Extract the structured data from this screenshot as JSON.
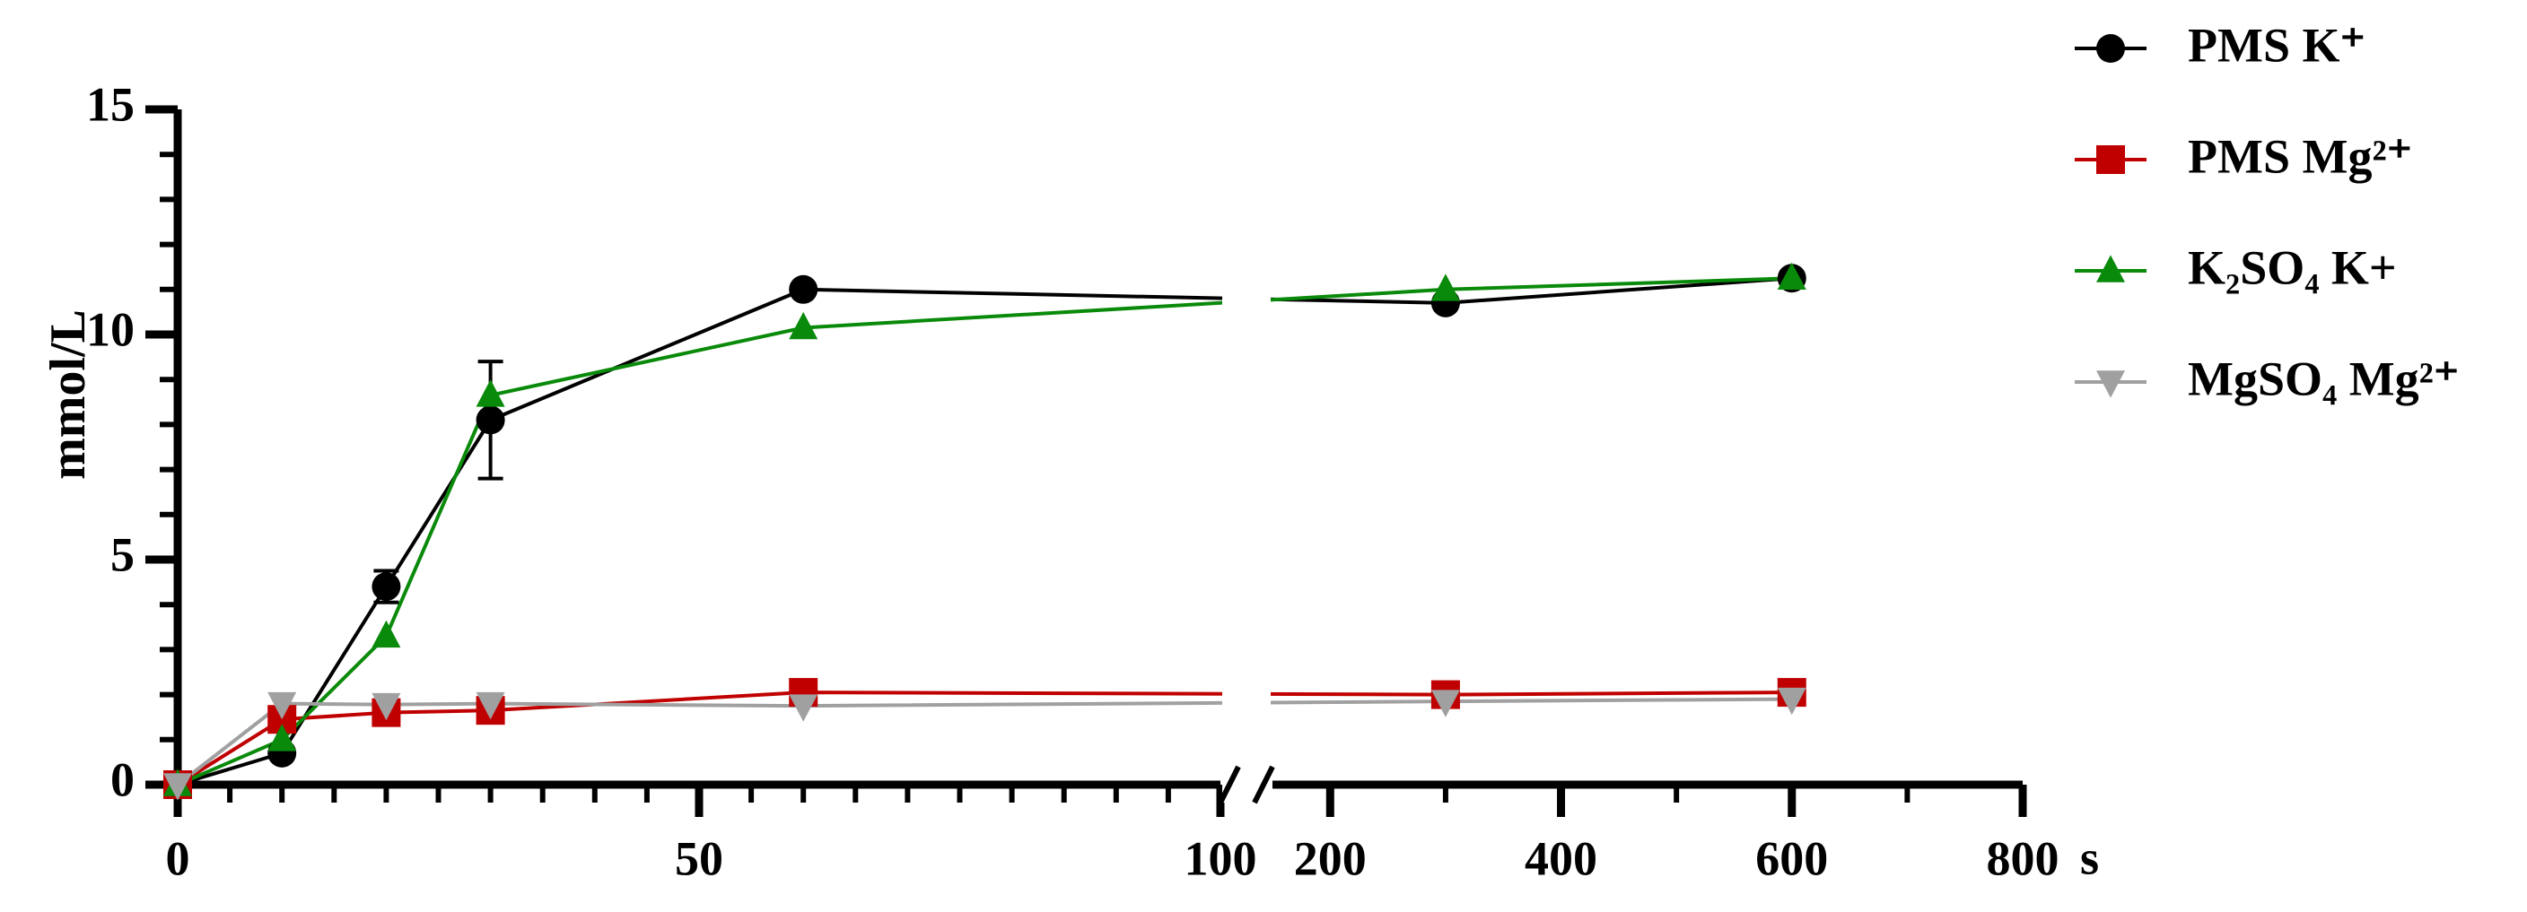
{
  "chart_data": {
    "type": "line",
    "ylabel": "mmol/L",
    "xlabel": "s",
    "x": [
      0,
      10,
      20,
      30,
      60,
      300,
      600
    ],
    "xlim": [
      0,
      100
    ],
    "xticks": [
      0,
      50,
      100
    ],
    "x2lim": [
      150,
      800
    ],
    "x2ticks": [
      200,
      400,
      600,
      800
    ],
    "ylim": [
      0,
      15
    ],
    "yticks": [
      0,
      5,
      10,
      15
    ],
    "series": [
      {
        "name": "PMS K⁺",
        "color": "#000000",
        "marker": "circle",
        "values": [
          0,
          0.7,
          4.4,
          8.1,
          11.0,
          10.7,
          11.25
        ],
        "errors": [
          null,
          null,
          0.35,
          1.3,
          null,
          null,
          null
        ]
      },
      {
        "name": "PMS Mg²⁺",
        "color": "#c00000",
        "marker": "square",
        "values": [
          0,
          1.45,
          1.6,
          1.65,
          2.05,
          2.0,
          2.05
        ]
      },
      {
        "name": "K₂SO₄ K+",
        "color": "#0a8a0a",
        "marker": "triangle-up",
        "values": [
          0,
          1.0,
          3.3,
          8.65,
          10.15,
          11.0,
          11.25
        ]
      },
      {
        "name": "MgSO₄ Mg²⁺",
        "color": "#a0a0a0",
        "marker": "triangle-down",
        "values": [
          0,
          1.8,
          1.78,
          1.8,
          1.75,
          1.85,
          1.9
        ]
      }
    ]
  }
}
